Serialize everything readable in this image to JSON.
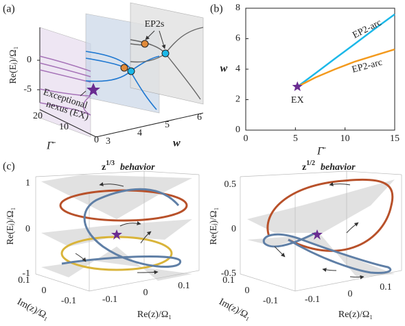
{
  "panel_a": {
    "label": "(a)",
    "ylabel": "Re(Eⱼ)/Ω₁",
    "yticks": [
      "0",
      "-5"
    ],
    "gamma_label": "Γ̄",
    "gamma_ticks": [
      "20",
      "10",
      "0"
    ],
    "w_label": "w",
    "w_ticks": [
      "3",
      "4",
      "5",
      "6"
    ],
    "ep2_label": "EP2s",
    "ex_line1": "Exceptional",
    "ex_line2": "nexus (EX)"
  },
  "chart_data": {
    "type": "line",
    "panel_label": "(b)",
    "xlabel": "Γ̄",
    "ylabel": "w",
    "x": [
      5.2,
      7,
      9,
      11,
      13,
      15
    ],
    "series": [
      {
        "name": "EP2-arc",
        "color": "#1cb8e8",
        "values": [
          2.85,
          3.72,
          4.7,
          5.67,
          6.65,
          7.6
        ]
      },
      {
        "name": "EP2-arc",
        "color": "#f39a1e",
        "values": [
          2.85,
          3.45,
          4.0,
          4.5,
          4.9,
          5.3
        ]
      }
    ],
    "points": [
      {
        "name": "EX",
        "x": 5.2,
        "y": 2.85,
        "color": "#6a2c91"
      }
    ],
    "xlim": [
      0,
      15
    ],
    "ylim": [
      0,
      8
    ],
    "xticks": [
      0,
      5,
      10,
      15
    ],
    "yticks": [
      0,
      2,
      4,
      6,
      8
    ]
  },
  "panel_c": {
    "label": "(c)",
    "left": {
      "title_base": "z",
      "title_exp": "1/3",
      "title_word": "behavior",
      "ylabel": "Re(Eⱼ)/Ω₁",
      "zticks": [
        "1",
        "0",
        "-1"
      ],
      "im_label": "Im(z)/Ω₁",
      "im_ticks": [
        "0.1",
        "0",
        "-0.1"
      ],
      "re_label": "Re(z)/Ω₁",
      "re_ticks": [
        "-0.1",
        "0",
        "0.1"
      ]
    },
    "right": {
      "title_base": "z",
      "title_exp": "1/2",
      "title_word": "behavior",
      "ylabel": "Re(Eⱼ)/Ω₁",
      "zticks": [
        "0.5",
        "0",
        "-0.5"
      ],
      "im_label": "Im(z)/Ω₁",
      "im_ticks": [
        "0.1",
        "0",
        "-0.1"
      ],
      "re_label": "Re(z)/Ω₁",
      "re_ticks": [
        "-0.1",
        "0",
        "0.1"
      ]
    }
  }
}
